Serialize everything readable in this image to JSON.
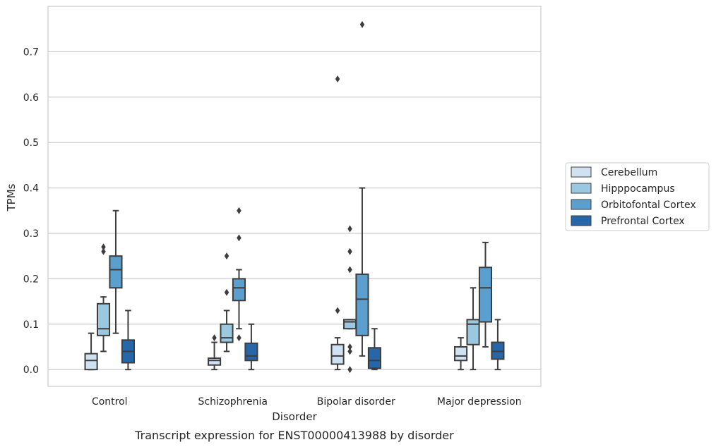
{
  "chart_data": {
    "type": "box",
    "caption": "Transcript expression for ENST00000413988 by disorder",
    "xlabel": "Disorder",
    "ylabel": "TPMs",
    "ylim": [
      -0.037,
      0.8
    ],
    "yticks": [
      0.0,
      0.1,
      0.2,
      0.3,
      0.4,
      0.5,
      0.6,
      0.7
    ],
    "ytick_labels": [
      "0.0",
      "0.1",
      "0.2",
      "0.3",
      "0.4",
      "0.5",
      "0.6",
      "0.7"
    ],
    "grid": "horizontal",
    "legend_position": "right",
    "categories": [
      "Control",
      "Schizophrenia",
      "Bipolar disorder",
      "Major depression"
    ],
    "series": [
      {
        "name": "Cerebellum",
        "color": "#d0e1f2",
        "boxes": [
          {
            "whislo": 0.0,
            "q1": 0.0,
            "med": 0.02,
            "q3": 0.035,
            "whishi": 0.08,
            "fliers": []
          },
          {
            "whislo": 0.0,
            "q1": 0.01,
            "med": 0.02,
            "q3": 0.025,
            "whishi": 0.06,
            "fliers": [
              0.07
            ]
          },
          {
            "whislo": 0.0,
            "q1": 0.012,
            "med": 0.03,
            "q3": 0.055,
            "whishi": 0.07,
            "fliers": [
              0.13,
              0.64
            ]
          },
          {
            "whislo": 0.0,
            "q1": 0.02,
            "med": 0.03,
            "q3": 0.05,
            "whishi": 0.07,
            "fliers": []
          }
        ]
      },
      {
        "name": "Hipppocampus",
        "color": "#9ac8e0",
        "boxes": [
          {
            "whislo": 0.04,
            "q1": 0.075,
            "med": 0.09,
            "q3": 0.145,
            "whishi": 0.16,
            "fliers": [
              0.26,
              0.27
            ]
          },
          {
            "whislo": 0.04,
            "q1": 0.06,
            "med": 0.07,
            "q3": 0.1,
            "whishi": 0.13,
            "fliers": [
              0.17,
              0.25
            ]
          },
          {
            "whislo": 0.09,
            "q1": 0.09,
            "med": 0.105,
            "q3": 0.11,
            "whishi": 0.11,
            "fliers": [
              0.0,
              0.04,
              0.05,
              0.22,
              0.26,
              0.31
            ]
          },
          {
            "whislo": 0.0,
            "q1": 0.055,
            "med": 0.1,
            "q3": 0.11,
            "whishi": 0.18,
            "fliers": []
          }
        ]
      },
      {
        "name": "Orbitofontal Cortex",
        "color": "#5a9fcd",
        "boxes": [
          {
            "whislo": 0.08,
            "q1": 0.18,
            "med": 0.22,
            "q3": 0.25,
            "whishi": 0.35,
            "fliers": []
          },
          {
            "whislo": 0.09,
            "q1": 0.152,
            "med": 0.18,
            "q3": 0.2,
            "whishi": 0.22,
            "fliers": [
              0.07,
              0.29,
              0.35
            ]
          },
          {
            "whislo": 0.03,
            "q1": 0.075,
            "med": 0.155,
            "q3": 0.21,
            "whishi": 0.4,
            "fliers": [
              0.76
            ]
          },
          {
            "whislo": 0.05,
            "q1": 0.105,
            "med": 0.18,
            "q3": 0.225,
            "whishi": 0.28,
            "fliers": []
          }
        ]
      },
      {
        "name": "Prefrontal Cortex",
        "color": "#2766a9",
        "boxes": [
          {
            "whislo": 0.0,
            "q1": 0.015,
            "med": 0.04,
            "q3": 0.065,
            "whishi": 0.13,
            "fliers": []
          },
          {
            "whislo": 0.0,
            "q1": 0.02,
            "med": 0.03,
            "q3": 0.058,
            "whishi": 0.1,
            "fliers": []
          },
          {
            "whislo": 0.0,
            "q1": 0.003,
            "med": 0.02,
            "q3": 0.048,
            "whishi": 0.09,
            "fliers": []
          },
          {
            "whislo": 0.0,
            "q1": 0.023,
            "med": 0.04,
            "q3": 0.06,
            "whishi": 0.11,
            "fliers": []
          }
        ]
      }
    ]
  }
}
